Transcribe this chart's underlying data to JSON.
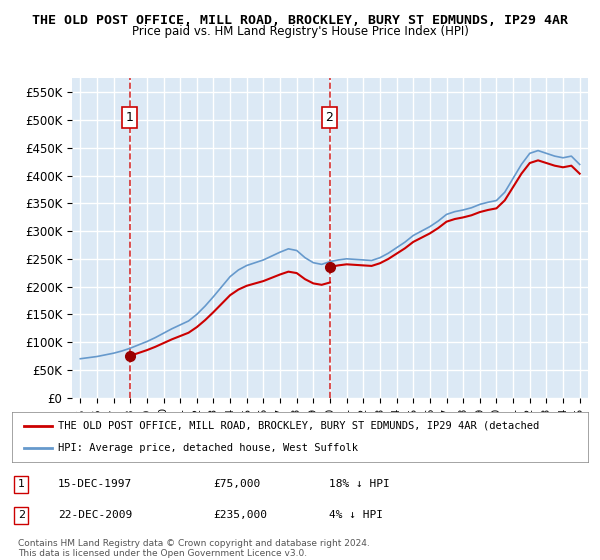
{
  "title_line1": "THE OLD POST OFFICE, MILL ROAD, BROCKLEY, BURY ST EDMUNDS, IP29 4AR",
  "title_line2": "Price paid vs. HM Land Registry's House Price Index (HPI)",
  "bg_color": "#dce9f5",
  "plot_bg_color": "#dce9f5",
  "grid_color": "#ffffff",
  "sale1_date_num": 1997.96,
  "sale1_price": 75000,
  "sale1_label": "1",
  "sale2_date_num": 2009.97,
  "sale2_price": 235000,
  "sale2_label": "2",
  "red_line_color": "#cc0000",
  "blue_line_color": "#6699cc",
  "dashed_line_color": "#cc0000",
  "marker_color": "#990000",
  "ylim_min": 0,
  "ylim_max": 575000,
  "xlim_min": 1994.5,
  "xlim_max": 2025.5,
  "yticks": [
    0,
    50000,
    100000,
    150000,
    200000,
    250000,
    300000,
    350000,
    400000,
    450000,
    500000,
    550000
  ],
  "ytick_labels": [
    "£0",
    "£50K",
    "£100K",
    "£150K",
    "£200K",
    "£250K",
    "£300K",
    "£350K",
    "£400K",
    "£450K",
    "£500K",
    "£550K"
  ],
  "xtick_years": [
    1995,
    1996,
    1997,
    1998,
    1999,
    2000,
    2001,
    2002,
    2003,
    2004,
    2005,
    2006,
    2007,
    2008,
    2009,
    2010,
    2011,
    2012,
    2013,
    2014,
    2015,
    2016,
    2017,
    2018,
    2019,
    2020,
    2021,
    2022,
    2023,
    2024,
    2025
  ],
  "legend_red_label": "THE OLD POST OFFICE, MILL ROAD, BROCKLEY, BURY ST EDMUNDS, IP29 4AR (detached",
  "legend_blue_label": "HPI: Average price, detached house, West Suffolk",
  "footnote1": "Contains HM Land Registry data © Crown copyright and database right 2024.",
  "footnote2": "This data is licensed under the Open Government Licence v3.0.",
  "table_row1": [
    "1",
    "15-DEC-1997",
    "£75,000",
    "18% ↓ HPI"
  ],
  "table_row2": [
    "2",
    "22-DEC-2009",
    "£235,000",
    "4% ↓ HPI"
  ]
}
